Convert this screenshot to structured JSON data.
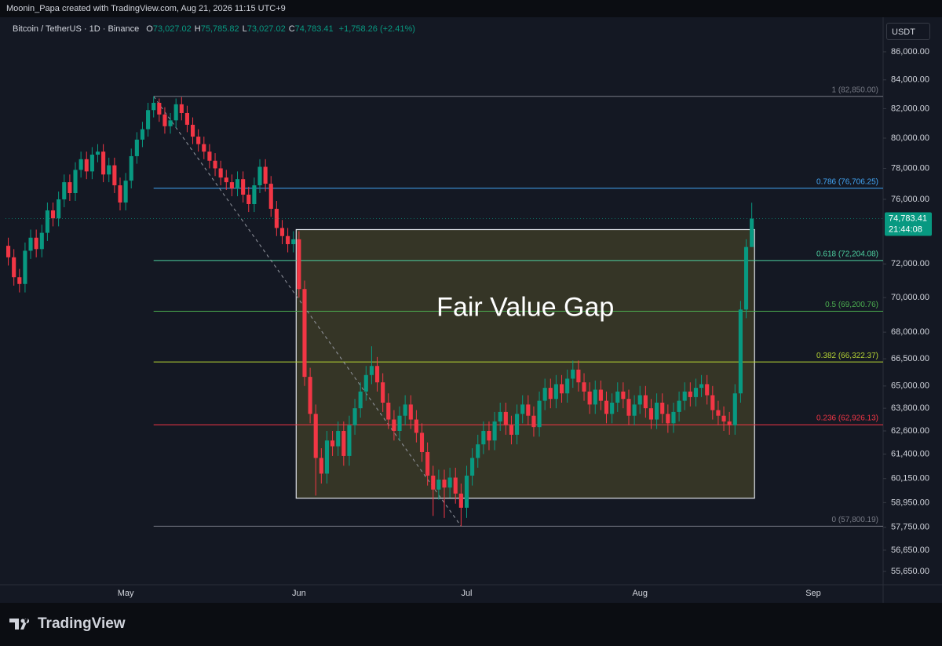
{
  "header": {
    "credit": "Moonin_Papa created with TradingView.com, Aug 21, 2026 11:15 UTC+9",
    "symbol": "Bitcoin / TetherUS · 1D · Binance",
    "ohlc": [
      {
        "key": "O",
        "value": "73,027.02"
      },
      {
        "key": "H",
        "value": "75,785.82"
      },
      {
        "key": "L",
        "value": "73,027.02"
      },
      {
        "key": "C",
        "value": "74,783.41"
      }
    ],
    "change": "+1,758.26 (+2.41%)",
    "currency": "USDT"
  },
  "watermark": "TradingView",
  "chart_data": {
    "type": "candlestick",
    "categories": [
      null,
      null,
      null,
      null,
      null,
      null,
      null,
      null,
      null,
      null,
      null,
      null,
      null,
      null,
      null,
      null,
      null,
      null,
      null,
      null,
      null,
      "May",
      null,
      null,
      null,
      null,
      null,
      null,
      null,
      null,
      null,
      null,
      null,
      null,
      null,
      null,
      null,
      null,
      null,
      null,
      null,
      null,
      null,
      null,
      null,
      null,
      null,
      null,
      null,
      null,
      null,
      null,
      "Jun",
      null,
      null,
      null,
      null,
      null,
      null,
      null,
      null,
      null,
      null,
      null,
      null,
      null,
      null,
      null,
      null,
      null,
      null,
      null,
      null,
      null,
      null,
      null,
      null,
      null,
      null,
      null,
      null,
      null,
      "Jul",
      null,
      null,
      null,
      null,
      null,
      null,
      null,
      null,
      null,
      null,
      null,
      null,
      null,
      null,
      null,
      null,
      null,
      null,
      null,
      null,
      null,
      null,
      null,
      null,
      null,
      null,
      null,
      null,
      null,
      null,
      "Aug",
      null,
      null,
      null,
      null,
      null,
      null,
      null,
      null,
      null,
      null,
      null,
      null,
      null,
      null,
      null,
      null,
      null,
      null,
      null,
      null,
      null,
      null,
      null,
      null,
      null,
      null,
      null,
      null,
      null,
      null,
      "Sep",
      null,
      null,
      null,
      null,
      null,
      null,
      null,
      null,
      null,
      null,
      null,
      null
    ],
    "open": [
      73100,
      72400,
      71200,
      70800,
      72800,
      73600,
      72900,
      73900,
      75300,
      74800,
      76000,
      77100,
      76400,
      77900,
      78600,
      77800,
      78900,
      79100,
      77600,
      78200,
      76900,
      75800,
      77200,
      78800,
      79900,
      80600,
      81900,
      82400,
      81600,
      80800,
      81200,
      82300,
      81700,
      80900,
      80100,
      79600,
      79100,
      78500,
      78000,
      77400,
      77100,
      76700,
      77300,
      76300,
      75700,
      76900,
      78100,
      77000,
      75400,
      74200,
      73700,
      73200,
      73500,
      70500,
      65500,
      63500,
      61200,
      60400,
      62100,
      61800,
      62600,
      61300,
      62900,
      63800,
      64700,
      65600,
      66100,
      65200,
      64100,
      63200,
      62600,
      63400,
      64000,
      63200,
      62500,
      61500,
      60300,
      59600,
      60100,
      59700,
      60200,
      59400,
      58700,
      60300,
      61200,
      61900,
      62600,
      62100,
      63100,
      63600,
      62900,
      62400,
      63500,
      64000,
      63400,
      62800,
      64200,
      64900,
      64300,
      65100,
      64600,
      65400,
      65900,
      65200,
      64700,
      64000,
      64800,
      64200,
      63500,
      64100,
      64700,
      64300,
      63400,
      64000,
      64500,
      63800,
      63200,
      64100,
      63500,
      63000,
      63600,
      64200,
      64700,
      64400,
      64900,
      65100,
      64500,
      63700,
      63400,
      63100,
      62900,
      64600,
      69300,
      73027.02,
      null,
      null,
      null,
      null,
      null,
      null,
      null,
      null,
      null,
      null,
      null,
      null,
      null,
      null,
      null,
      null,
      null,
      null,
      null,
      null,
      null,
      null,
      null
    ],
    "high": [
      73600,
      72900,
      71700,
      73300,
      74100,
      74100,
      74400,
      75800,
      75800,
      76500,
      77600,
      77600,
      78400,
      79100,
      79100,
      79400,
      79600,
      79600,
      78700,
      78700,
      77400,
      77700,
      79300,
      80400,
      81100,
      82400,
      82850,
      82700,
      82100,
      81700,
      82700,
      82800,
      82200,
      81400,
      80600,
      80100,
      79600,
      79000,
      78500,
      77900,
      77600,
      77800,
      77800,
      76800,
      77400,
      78600,
      78600,
      77500,
      75900,
      74700,
      74200,
      74000,
      74000,
      71000,
      66000,
      64000,
      61700,
      62600,
      62600,
      63100,
      63100,
      63400,
      64300,
      65200,
      66100,
      67200,
      66600,
      65700,
      64600,
      63700,
      63900,
      64500,
      64500,
      63700,
      63000,
      62000,
      60800,
      60600,
      60600,
      60700,
      60700,
      59900,
      60800,
      61700,
      62400,
      63100,
      63100,
      63600,
      64100,
      64100,
      63400,
      64000,
      64500,
      64500,
      63900,
      64700,
      65400,
      65400,
      65600,
      65600,
      65900,
      66400,
      66400,
      65700,
      65200,
      65300,
      65300,
      64700,
      64600,
      65200,
      65200,
      64800,
      64500,
      65000,
      65000,
      64300,
      64600,
      64600,
      64000,
      64100,
      64700,
      65200,
      65200,
      65400,
      65600,
      65600,
      65000,
      64200,
      63900,
      63600,
      65100,
      69800,
      73500,
      75785.82,
      null,
      null,
      null,
      null,
      null,
      null,
      null,
      null,
      null,
      null,
      null,
      null,
      null,
      null,
      null,
      null,
      null,
      null,
      null,
      null,
      null,
      null,
      null
    ],
    "low": [
      71900,
      70700,
      70300,
      70300,
      72300,
      72400,
      72400,
      73400,
      74300,
      74300,
      75500,
      75900,
      75900,
      77400,
      77300,
      77300,
      78400,
      77100,
      77100,
      76400,
      75300,
      75300,
      76700,
      78300,
      79400,
      80100,
      81400,
      81100,
      80300,
      80300,
      80700,
      81200,
      80400,
      79600,
      79100,
      78600,
      78000,
      77500,
      76900,
      76600,
      76200,
      76200,
      75800,
      75200,
      75200,
      76400,
      76500,
      74900,
      73700,
      73200,
      72700,
      72700,
      70000,
      65000,
      63000,
      59300,
      59900,
      59900,
      61300,
      61300,
      60800,
      60800,
      62400,
      63300,
      64200,
      65100,
      64700,
      63600,
      62700,
      62100,
      62100,
      62900,
      62700,
      62000,
      61000,
      59800,
      58300,
      59100,
      58200,
      59200,
      58900,
      57800,
      58200,
      59800,
      60700,
      61400,
      61600,
      61600,
      62600,
      62400,
      61900,
      61900,
      63000,
      62900,
      62300,
      62300,
      63700,
      63800,
      63800,
      64100,
      64100,
      64900,
      64700,
      64200,
      63500,
      63500,
      63700,
      63000,
      63000,
      63600,
      63800,
      62900,
      62900,
      63500,
      63300,
      62700,
      62700,
      63000,
      62500,
      62500,
      63100,
      63700,
      63900,
      63900,
      64400,
      64000,
      63200,
      62900,
      62600,
      62400,
      62400,
      64100,
      68800,
      73027.02,
      null,
      null,
      null,
      null,
      null,
      null,
      null,
      null,
      null,
      null,
      null,
      null,
      null,
      null,
      null,
      null,
      null,
      null,
      null,
      null,
      null,
      null,
      null
    ],
    "close": [
      72400,
      71200,
      70800,
      72800,
      73600,
      72900,
      73900,
      75300,
      74800,
      76000,
      77100,
      76400,
      77900,
      78600,
      77800,
      78900,
      79100,
      77600,
      78200,
      76900,
      75800,
      77200,
      78800,
      79900,
      80600,
      81900,
      82400,
      81600,
      80800,
      81200,
      82300,
      81700,
      80900,
      80100,
      79600,
      79100,
      78500,
      78000,
      77400,
      77100,
      76700,
      77300,
      76300,
      75700,
      76900,
      78100,
      77000,
      75400,
      74200,
      73700,
      73200,
      73500,
      70500,
      65500,
      63500,
      61200,
      60400,
      62100,
      61800,
      62600,
      61300,
      62900,
      63800,
      64700,
      65600,
      66100,
      65200,
      64100,
      63200,
      62600,
      63400,
      64000,
      63200,
      62500,
      61500,
      60300,
      59600,
      60100,
      59700,
      60200,
      59400,
      58700,
      60300,
      61200,
      61900,
      62600,
      62100,
      63100,
      63600,
      62900,
      62400,
      63500,
      64000,
      63400,
      62800,
      64200,
      64900,
      64300,
      65100,
      64600,
      65400,
      65900,
      65200,
      64700,
      64000,
      64800,
      64200,
      63500,
      64100,
      64700,
      64300,
      63400,
      64000,
      64500,
      63800,
      63200,
      64100,
      63500,
      63000,
      63600,
      64200,
      64700,
      64400,
      64900,
      65100,
      64500,
      63700,
      63400,
      63100,
      62900,
      64600,
      69300,
      73027.02,
      74783.41,
      null,
      null,
      null,
      null,
      null,
      null,
      null,
      null,
      null,
      null,
      null,
      null,
      null,
      null,
      null,
      null,
      null,
      null,
      null,
      null,
      null,
      null,
      null
    ],
    "up_color": "#089981",
    "down_color": "#f23645",
    "ylim": [
      55140,
      88290
    ],
    "log_scale": true,
    "grid": false,
    "yticks": [
      {
        "value": 86000,
        "label": "86,000.00"
      },
      {
        "value": 84000,
        "label": "84,000.00"
      },
      {
        "value": 82000,
        "label": "82,000.00"
      },
      {
        "value": 80000,
        "label": "80,000.00"
      },
      {
        "value": 78000,
        "label": "78,000.00"
      },
      {
        "value": 76000,
        "label": "76,000.00"
      },
      {
        "value": 72000,
        "label": "72,000.00"
      },
      {
        "value": 70000,
        "label": "70,000.00"
      },
      {
        "value": 68000,
        "label": "68,000.00"
      },
      {
        "value": 66500,
        "label": "66,500.00"
      },
      {
        "value": 65000,
        "label": "65,000.00"
      },
      {
        "value": 63800,
        "label": "63,800.00"
      },
      {
        "value": 62600,
        "label": "62,600.00"
      },
      {
        "value": 61400,
        "label": "61,400.00"
      },
      {
        "value": 60150,
        "label": "60,150.00"
      },
      {
        "value": 58950,
        "label": "58,950.00"
      },
      {
        "value": 57750,
        "label": "57,750.00"
      },
      {
        "value": 56650,
        "label": "56,650.00"
      },
      {
        "value": 55650,
        "label": "55,650.00"
      }
    ],
    "fib_levels": [
      {
        "value": 82850,
        "label": "1 (82,850.00)",
        "color": "#787b86"
      },
      {
        "value": 76706.25,
        "label": "0.786 (76,706.25)",
        "color": "#42a5f5"
      },
      {
        "value": 72204.08,
        "label": "0.618 (72,204.08)",
        "color": "#4dd0a0"
      },
      {
        "value": 69200.76,
        "label": "0.5 (69,200.76)",
        "color": "#4caf50"
      },
      {
        "value": 66322.37,
        "label": "0.382 (66,322.37)",
        "color": "#b5d334"
      },
      {
        "value": 62926.13,
        "label": "0.236 (62,926.13)",
        "color": "#f23645"
      },
      {
        "value": 57800.19,
        "label": "0 (57,800.19)",
        "color": "#787b86"
      }
    ],
    "fib_anchor": [
      26,
      81
    ],
    "fvg": {
      "label": "Fair Value Gap",
      "top": 74100,
      "bottom": 59170,
      "from": 52,
      "to": 133,
      "color": "#ffeb3b"
    },
    "last_price": {
      "label": "74,783.41",
      "countdown": "21:44:08"
    }
  }
}
